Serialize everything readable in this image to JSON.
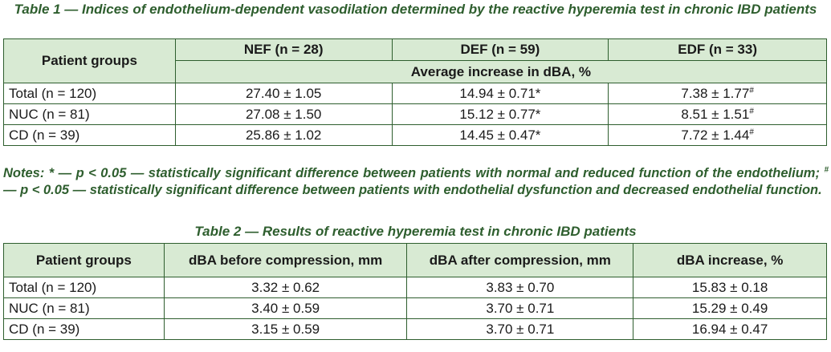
{
  "table1": {
    "caption": "Table 1 — Indices of endothelium-dependent vasodilation determined by the reactive hyperemia test in chronic IBD patients",
    "group_header": "Patient groups",
    "columns": [
      "NEF (n = 28)",
      "DEF (n = 59)",
      "EDF (n = 33)"
    ],
    "subheader": "Average increase in dBA, %",
    "rows": [
      {
        "group": "Total (n = 120)",
        "nef": "27.40 ± 1.05",
        "def": "14.94 ± 0.71*",
        "edf": "7.38 ± 1.77",
        "edf_mark": "#"
      },
      {
        "group": "NUC (n = 81)",
        "nef": "27.08 ± 1.50",
        "def": "15.12 ± 0.77*",
        "edf": "8.51 ± 1.51",
        "edf_mark": "#"
      },
      {
        "group": "CD (n = 39)",
        "nef": "25.86 ± 1.02",
        "def": "14.45 ± 0.47*",
        "edf": "7.72 ± 1.44",
        "edf_mark": "#"
      }
    ]
  },
  "notes": {
    "part1": "Notes: * — p < 0.05 — statistically significant difference between patients with normal and reduced function of the endothelium; ",
    "mark": "#",
    "part2": " — p < 0.05 — statistically significant difference between patients with endothelial dysfunction and decreased endothelial function."
  },
  "table2": {
    "caption": "Table 2 — Results of reactive hyperemia test in chronic IBD patients",
    "headers": [
      "Patient groups",
      "dBA before compression, mm",
      "dBA after compression, mm",
      "dBA increase, %"
    ],
    "rows": [
      {
        "group": "Total (n = 120)",
        "before": "3.32 ± 0.62",
        "after": "3.83 ± 0.70",
        "increase": "15.83 ± 0.18"
      },
      {
        "group": "NUC (n = 81)",
        "before": "3.40 ± 0.59",
        "after": "3.70 ± 0.71",
        "increase": "15.29 ± 0.49"
      },
      {
        "group": "CD (n = 39)",
        "before": "3.15 ± 0.59",
        "after": "3.70 ± 0.71",
        "increase": "16.94 ± 0.47"
      }
    ]
  },
  "colors": {
    "accent_green": "#2e5e2e",
    "header_fill": "#d8ead3"
  }
}
